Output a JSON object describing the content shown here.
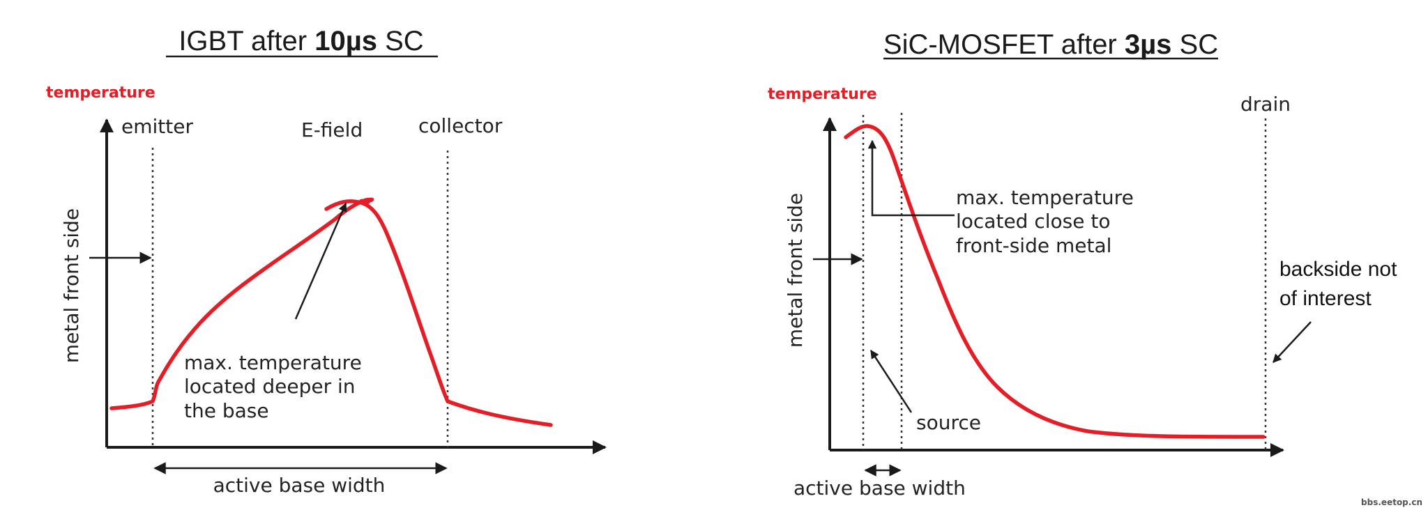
{
  "colors": {
    "curve": "#e41e26",
    "label_red": "#e41e26",
    "ink": "#1a1a1a"
  },
  "left": {
    "title": {
      "pre": "IGBT after ",
      "bold": "10µs",
      "post": " SC"
    },
    "y_label_top": "temperature",
    "y_axis_label": "metal front side",
    "emitter": "emitter",
    "efield": "E-field",
    "collector": "collector",
    "annotation": [
      "max. temperature",
      "located deeper in",
      "the base"
    ],
    "x_label": "active base width"
  },
  "right": {
    "title": {
      "pre": "SiC-MOSFET after ",
      "bold": "3µs",
      "post": " SC"
    },
    "y_label_top": "temperature",
    "y_axis_label": "metal front side",
    "drain": "drain",
    "annotation": [
      "max. temperature",
      "located close to",
      "front-side metal"
    ],
    "source": "source",
    "backside": [
      "backside not",
      "of interest"
    ],
    "x_label": "active base width"
  },
  "watermark": "bbs.eetop.cn"
}
